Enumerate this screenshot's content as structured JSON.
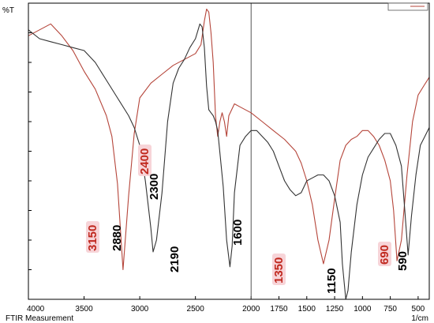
{
  "chart_data": {
    "type": "line",
    "ylabel": "%T",
    "xlabel": "FTIR Measurement",
    "x_unit": "1/cm",
    "xlim": [
      4000,
      400
    ],
    "x_ticks": [
      4000,
      3500,
      3000,
      2500,
      2000,
      1750,
      1500,
      1250,
      1000,
      750,
      500
    ],
    "ylim": [
      0,
      100
    ],
    "y_tick_count": 11,
    "grid": {
      "horizontal": false,
      "vertical": false
    },
    "legend": {
      "placement": "top-right",
      "visible_entries": []
    },
    "series": [
      {
        "color": "#b5453a",
        "points": [
          [
            4000,
            89
          ],
          [
            3800,
            93
          ],
          [
            3700,
            89
          ],
          [
            3600,
            84
          ],
          [
            3500,
            77
          ],
          [
            3400,
            71
          ],
          [
            3300,
            62
          ],
          [
            3250,
            55
          ],
          [
            3200,
            39
          ],
          [
            3150,
            10
          ],
          [
            3100,
            35
          ],
          [
            3050,
            56
          ],
          [
            3000,
            68
          ],
          [
            2900,
            73
          ],
          [
            2800,
            76
          ],
          [
            2700,
            79
          ],
          [
            2600,
            81
          ],
          [
            2500,
            83
          ],
          [
            2450,
            86
          ],
          [
            2420,
            94
          ],
          [
            2400,
            98
          ],
          [
            2380,
            97
          ],
          [
            2360,
            90
          ],
          [
            2340,
            80
          ],
          [
            2320,
            62
          ],
          [
            2300,
            55
          ],
          [
            2280,
            60
          ],
          [
            2260,
            63
          ],
          [
            2240,
            60
          ],
          [
            2220,
            55
          ],
          [
            2200,
            62
          ],
          [
            2150,
            66
          ],
          [
            2100,
            65
          ],
          [
            2000,
            63
          ],
          [
            1900,
            60
          ],
          [
            1800,
            57
          ],
          [
            1700,
            54
          ],
          [
            1600,
            50
          ],
          [
            1550,
            46
          ],
          [
            1500,
            40
          ],
          [
            1450,
            32
          ],
          [
            1400,
            20
          ],
          [
            1350,
            12
          ],
          [
            1300,
            20
          ],
          [
            1250,
            34
          ],
          [
            1200,
            47
          ],
          [
            1150,
            52
          ],
          [
            1100,
            54
          ],
          [
            1050,
            55
          ],
          [
            1000,
            57
          ],
          [
            950,
            57
          ],
          [
            900,
            55
          ],
          [
            850,
            52
          ],
          [
            800,
            47
          ],
          [
            750,
            40
          ],
          [
            720,
            30
          ],
          [
            690,
            13
          ],
          [
            650,
            20
          ],
          [
            600,
            42
          ],
          [
            550,
            60
          ],
          [
            500,
            69
          ],
          [
            450,
            72
          ],
          [
            400,
            75
          ]
        ]
      },
      {
        "color": "#333333",
        "points": [
          [
            4000,
            91
          ],
          [
            3900,
            88
          ],
          [
            3800,
            87
          ],
          [
            3700,
            86
          ],
          [
            3600,
            85
          ],
          [
            3500,
            84
          ],
          [
            3400,
            80
          ],
          [
            3300,
            74
          ],
          [
            3200,
            68
          ],
          [
            3100,
            62
          ],
          [
            3050,
            58
          ],
          [
            3000,
            52
          ],
          [
            2950,
            40
          ],
          [
            2900,
            24
          ],
          [
            2880,
            16
          ],
          [
            2850,
            20
          ],
          [
            2800,
            36
          ],
          [
            2750,
            60
          ],
          [
            2700,
            73
          ],
          [
            2650,
            78
          ],
          [
            2600,
            81
          ],
          [
            2550,
            85
          ],
          [
            2500,
            88
          ],
          [
            2460,
            93
          ],
          [
            2440,
            92
          ],
          [
            2420,
            85
          ],
          [
            2400,
            72
          ],
          [
            2380,
            64
          ],
          [
            2360,
            63
          ],
          [
            2340,
            62
          ],
          [
            2320,
            60
          ],
          [
            2300,
            57
          ],
          [
            2250,
            38
          ],
          [
            2220,
            20
          ],
          [
            2190,
            11
          ],
          [
            2170,
            18
          ],
          [
            2150,
            36
          ],
          [
            2100,
            52
          ],
          [
            2050,
            55
          ],
          [
            2000,
            57
          ],
          [
            1950,
            57
          ],
          [
            1900,
            55
          ],
          [
            1850,
            53
          ],
          [
            1800,
            50
          ],
          [
            1750,
            45
          ],
          [
            1700,
            40
          ],
          [
            1650,
            37
          ],
          [
            1600,
            35
          ],
          [
            1550,
            36
          ],
          [
            1500,
            40
          ],
          [
            1450,
            41
          ],
          [
            1400,
            42
          ],
          [
            1350,
            42
          ],
          [
            1300,
            40
          ],
          [
            1250,
            35
          ],
          [
            1200,
            26
          ],
          [
            1180,
            12
          ],
          [
            1150,
            0
          ],
          [
            1130,
            3
          ],
          [
            1100,
            16
          ],
          [
            1050,
            32
          ],
          [
            1000,
            42
          ],
          [
            950,
            48
          ],
          [
            900,
            51
          ],
          [
            850,
            54
          ],
          [
            800,
            56
          ],
          [
            750,
            56
          ],
          [
            700,
            52
          ],
          [
            650,
            45
          ],
          [
            620,
            30
          ],
          [
            590,
            15
          ],
          [
            560,
            28
          ],
          [
            520,
            42
          ],
          [
            480,
            52
          ],
          [
            440,
            55
          ],
          [
            400,
            58
          ]
        ]
      }
    ],
    "annotations": [
      {
        "text": "3150",
        "x": 3150,
        "color": "#c0281e",
        "boxed": true
      },
      {
        "text": "2880",
        "x": 2880,
        "color": "#000000",
        "boxed": false
      },
      {
        "text": "2400",
        "x": 2400,
        "color": "#c0281e",
        "boxed": true
      },
      {
        "text": "2300",
        "x": 2300,
        "color": "#000000",
        "boxed": false
      },
      {
        "text": "2190",
        "x": 2190,
        "color": "#000000",
        "boxed": false
      },
      {
        "text": "1600",
        "x": 1600,
        "color": "#000000",
        "boxed": false
      },
      {
        "text": "1350",
        "x": 1350,
        "color": "#c0281e",
        "boxed": true
      },
      {
        "text": "1150",
        "x": 1150,
        "color": "#000000",
        "boxed": false
      },
      {
        "text": "690",
        "x": 690,
        "color": "#c0281e",
        "boxed": true
      },
      {
        "text": "590",
        "x": 590,
        "color": "#000000",
        "boxed": false
      }
    ],
    "cursor_line_x": 2000
  }
}
